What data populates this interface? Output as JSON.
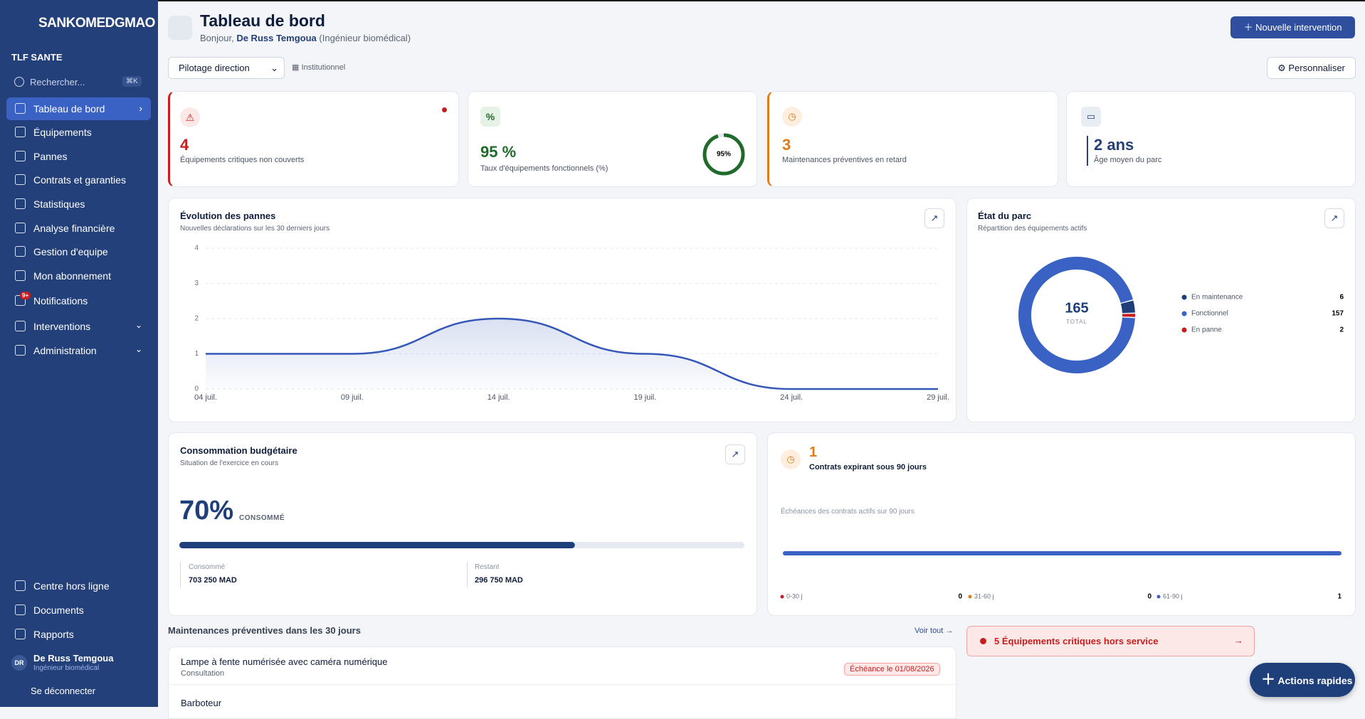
{
  "sidebar": {
    "brand": "SANKOMEDGMAO",
    "org": "TLF SANTE",
    "search": "Rechercher...",
    "shortcut": "⌘K",
    "nav": [
      "Tableau de bord",
      "Équipements",
      "Pannes",
      "Contrats et garanties",
      "Statistiques",
      "Analyse financière",
      "Gestion d'equipe",
      "Mon abonnement",
      "Notifications",
      "Interventions",
      "Administration"
    ],
    "badge": "9+",
    "footer_nav": [
      "Centre hors ligne",
      "Documents",
      "Rapports"
    ],
    "user": {
      "initials": "DR",
      "name": "De Russ Temgoua",
      "role": "Ingénieur biomédical"
    },
    "logout": "Se déconnecter"
  },
  "header": {
    "title": "Tableau de bord",
    "greeting": "Bonjour,",
    "user": "De Russ Temgoua",
    "role": "(Ingénieur biomédical)",
    "button": "Nouvelle intervention",
    "view_select": "Pilotage direction",
    "scope": "Institutionnel",
    "customize": "Personnaliser"
  },
  "kpis": [
    {
      "value": "4",
      "label": "Équipements critiques non couverts"
    },
    {
      "value": "95 %",
      "label": "Taux d'équipements fonctionnels (%)",
      "gauge": 95,
      "gauge_label": "95%"
    },
    {
      "value": "3",
      "label": "Maintenances préventives en retard"
    },
    {
      "value": "2 ans",
      "label": "Âge moyen du parc"
    }
  ],
  "pannes_chart": {
    "type": "line",
    "title": "Évolution des pannes",
    "subtitle": "Nouvelles déclarations sur les 30 derniers jours",
    "categories": [
      "04 juil.",
      "09 juil.",
      "14 juil.",
      "19 juil.",
      "24 juil.",
      "29 juil."
    ],
    "values": [
      1,
      1,
      2,
      1,
      0,
      0
    ],
    "color": "#3457b8",
    "ylim": [
      0,
      4
    ],
    "yticks": [
      0,
      1,
      2,
      3,
      4
    ],
    "grid": true
  },
  "parc_chart": {
    "type": "donut",
    "title": "État du parc",
    "subtitle": "Répartition des équipements actifs",
    "total": 165,
    "total_label": "TOTAL",
    "series": [
      {
        "name": "En maintenance",
        "color": "#1f3f7a",
        "value": 6
      },
      {
        "name": "Fonctionnel",
        "color": "#3a62c4",
        "value": 157
      },
      {
        "name": "En panne",
        "color": "#c81e1e",
        "value": 2
      }
    ]
  },
  "budget": {
    "title": "Consommation budgétaire",
    "subtitle": "Situation de l'exercice en cours",
    "value": 70,
    "value_label": "70%",
    "caption": "CONSOMMÉ",
    "consumed_label": "Consommé",
    "consumed": "703 250 MAD",
    "remaining_label": "Restant",
    "remaining": "296 750 MAD"
  },
  "contracts": {
    "count": "1",
    "title": "Contrats expirant sous 90 jours",
    "subtitle": "Échéances des contrats actifs sur 90 jours",
    "buckets": [
      {
        "name": "0-30 j",
        "color": "#c81e1e",
        "value": 0
      },
      {
        "name": "31-60 j",
        "color": "#e07b1a",
        "value": 0
      },
      {
        "name": "61-90 j",
        "color": "#3a62c4",
        "value": 1
      }
    ]
  },
  "maintenance_list": {
    "title": "Maintenances préventives dans les 30 jours",
    "link": "Voir tout",
    "items": [
      {
        "name": "Lampe à fente numérisée avec caméra numérique",
        "type": "Consultation",
        "due": "Échéance le 01/08/2026"
      },
      {
        "name": "Barboteur"
      }
    ]
  },
  "alert": "5 Équipements critiques hors service",
  "quick_actions": "Actions rapides"
}
